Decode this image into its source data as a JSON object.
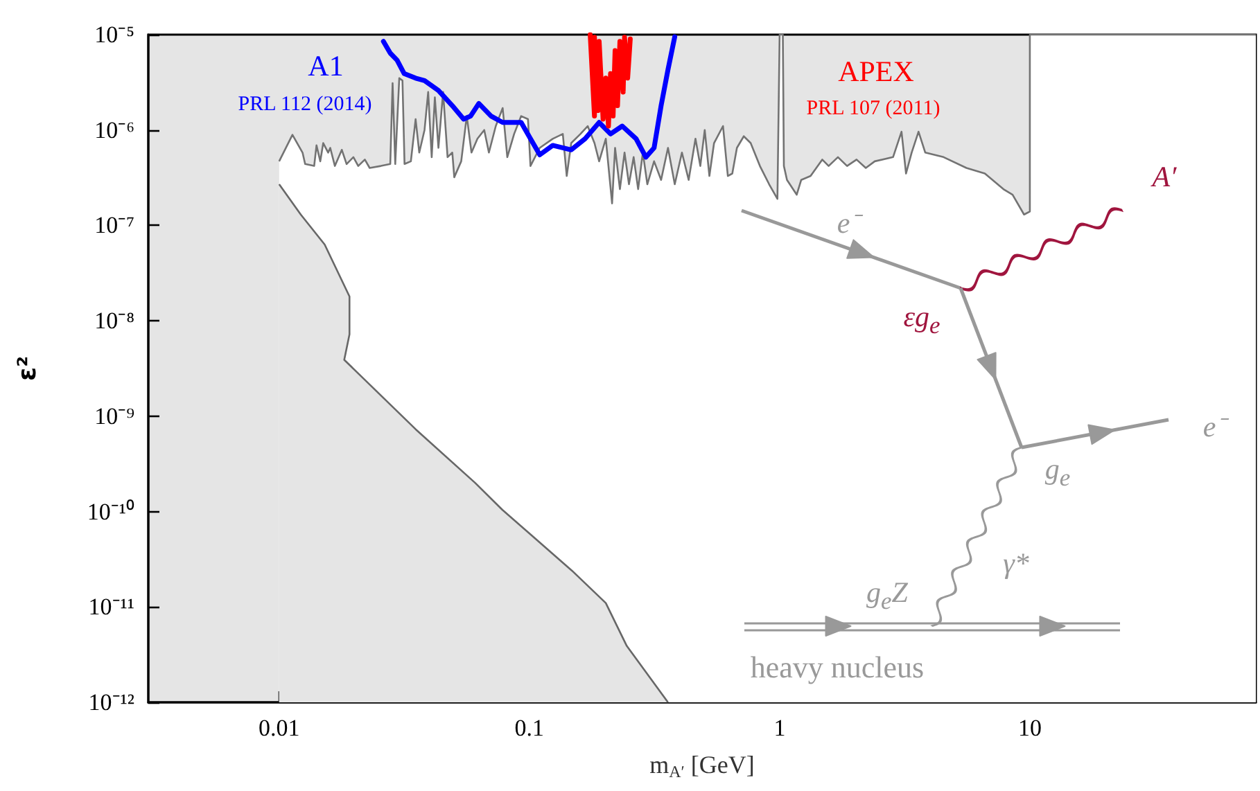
{
  "chart_data": {
    "type": "line",
    "xlabel": "m$_{A′}$ [GeV]",
    "ylabel": "ε²",
    "log": "xy",
    "grid": false,
    "legend": false,
    "marker": "none",
    "line_style": "solid",
    "xlim": [
      0.003,
      80
    ],
    "xticks": [
      0.01,
      0.1,
      1,
      10
    ],
    "ylim": [
      1e-12,
      1e-05
    ],
    "yticks": [
      {
        "value": 1e-12,
        "label": "10⁻¹²"
      },
      {
        "value": 1e-11,
        "label": "10⁻¹¹"
      },
      {
        "value": 1e-10,
        "label": "10⁻¹⁰"
      },
      {
        "value": 1e-09,
        "label": "10⁻⁹"
      },
      {
        "value": 1e-08,
        "label": "10⁻⁸"
      },
      {
        "value": 1e-07,
        "label": "10⁻⁷"
      },
      {
        "value": 1e-06,
        "label": "10⁻⁶"
      },
      {
        "value": 1e-05,
        "label": "10⁻⁵"
      }
    ],
    "annotations": [
      "PRL 112 (2014)",
      "PRL 107 (2011)",
      "e⁻",
      "A′",
      "εg$_{e}$",
      "e⁻",
      "g$_{e}$",
      "γ*",
      "g$_{e}$Z",
      "heavy nucleus"
    ],
    "series": [
      {
        "type": "area",
        "color": "#ffffff",
        "x": [
          0.01,
          0.0113,
          0.0124,
          0.0127,
          0.0138,
          0.0141,
          0.0146,
          0.015,
          0.0157,
          0.016,
          0.0167,
          0.0178,
          0.0186,
          0.0198,
          0.0207,
          0.022,
          0.023,
          0.0255,
          0.0278,
          0.0284,
          0.0291,
          0.0302,
          0.0311,
          0.0317,
          0.0336,
          0.0351,
          0.0363,
          0.0381,
          0.0394,
          0.0407,
          0.0419,
          0.0433,
          0.0452,
          0.0471,
          0.0492,
          0.0501,
          0.0534,
          0.0562,
          0.0587,
          0.062,
          0.066,
          0.0689,
          0.0734,
          0.0782,
          0.0816,
          0.0869,
          0.0927,
          0.0987,
          0.101,
          0.11,
          0.124,
          0.136,
          0.141,
          0.147,
          0.16,
          0.171,
          0.182,
          0.19,
          0.202,
          0.214,
          0.22,
          0.23,
          0.24,
          0.25,
          0.261,
          0.272,
          0.284,
          0.296,
          0.315,
          0.336,
          0.358,
          0.381,
          0.407,
          0.433,
          0.461,
          0.482,
          0.502,
          0.524,
          0.547,
          0.594,
          0.621,
          0.647,
          0.675,
          0.719,
          0.766,
          0.834,
          0.908,
          0.98,
          1.0,
          1.03,
          1.04,
          1.07,
          1.17,
          1.22,
          1.33,
          1.48,
          1.57,
          1.71,
          1.86,
          2.03,
          2.21,
          2.4,
          2.84,
          3.07,
          3.2,
          3.37,
          3.59,
          3.82,
          4.52,
          5.58,
          6.61,
          7.84,
          8.53,
          9.48,
          10.0,
          10.0,
          80
        ],
        "values": [
          4.7e-07,
          8.9e-07,
          5.8e-07,
          4.4e-07,
          4.2e-07,
          6.9e-07,
          4.7e-07,
          7.3e-07,
          5.8e-07,
          6.5e-07,
          4.2e-07,
          6.2e-07,
          4.4e-07,
          5.2e-07,
          4.2e-07,
          4.9e-07,
          4e-07,
          4.2e-07,
          4.4e-07,
          3.1e-06,
          4.4e-07,
          3.5e-06,
          3.3e-06,
          4.4e-07,
          4.7e-07,
          1.3e-06,
          5.8e-07,
          1e-06,
          2.5e-06,
          5.2e-07,
          2.2e-06,
          6.5e-07,
          2.5e-06,
          5.2e-07,
          5.8e-07,
          3.2e-07,
          4.7e-07,
          1.4e-06,
          5.8e-07,
          8.1e-07,
          1e-06,
          5.8e-07,
          1.1e-06,
          1.7e-06,
          5.2e-07,
          9.1e-07,
          1.4e-06,
          1.3e-06,
          4.2e-07,
          6.5e-07,
          8.1e-07,
          9.1e-07,
          3.3e-07,
          7.3e-07,
          9.1e-07,
          1.1e-06,
          7.3e-07,
          4.7e-07,
          8.1e-07,
          1.7e-07,
          6.5e-07,
          2.4e-07,
          5.8e-07,
          2.7e-07,
          5.2e-07,
          2.4e-07,
          5.8e-07,
          2.7e-07,
          4.7e-07,
          3e-07,
          6.5e-07,
          2.7e-07,
          5.8e-07,
          3e-07,
          8.1e-07,
          4.2e-07,
          1e-06,
          3.3e-07,
          7.3e-07,
          1.1e-06,
          3.3e-07,
          3.5e-07,
          6.5e-07,
          8.6e-07,
          7.3e-07,
          4.2e-07,
          2.7e-07,
          1.9e-07,
          1e-05,
          1e-05,
          4.2e-07,
          3e-07,
          2.1e-07,
          3e-07,
          3.3e-07,
          4.9e-07,
          4.2e-07,
          5.2e-07,
          4.2e-07,
          4.9e-07,
          4e-07,
          4.7e-07,
          5.2e-07,
          9.6e-07,
          3.5e-07,
          5.8e-07,
          9.6e-07,
          5.8e-07,
          5.2e-07,
          4e-07,
          3.5e-07,
          2.4e-07,
          2.1e-07,
          1.3e-07,
          1.4e-07,
          1e-05,
          1e-05
        ]
      },
      {
        "type": "area",
        "color": "#e5e5e5",
        "x": [
          0.01,
          0.0122,
          0.0152,
          0.0191,
          0.0191,
          0.0182,
          0.0351,
          0.0607,
          0.0781,
          0.148,
          0.202,
          0.245,
          0.358
        ],
        "values": [
          2.7e-07,
          1.3e-07,
          6.3e-08,
          1.8e-08,
          7.2e-09,
          3.9e-09,
          7.3e-10,
          2e-10,
          1.04e-10,
          2.4e-11,
          1.1e-11,
          3.9e-12,
          1e-12
        ]
      },
      {
        "name": "A1",
        "color": "#0000ff",
        "x": [
          0.0261,
          0.0278,
          0.0296,
          0.0316,
          0.0351,
          0.0381,
          0.0433,
          0.0492,
          0.0546,
          0.0582,
          0.0628,
          0.0703,
          0.0782,
          0.0927,
          0.101,
          0.11,
          0.124,
          0.147,
          0.167,
          0.19,
          0.211,
          0.235,
          0.267,
          0.292,
          0.315,
          0.336,
          0.358,
          0.381
        ],
        "values": [
          8.5e-06,
          6.4e-06,
          5.4e-06,
          3.9e-06,
          3.5e-06,
          3.3e-06,
          2.6e-06,
          1.8e-06,
          1.3e-06,
          1.4e-06,
          1.9e-06,
          1.4e-06,
          1.2e-06,
          1.2e-06,
          8.1e-07,
          5.5e-07,
          6.9e-07,
          6.2e-07,
          8.1e-07,
          1.2e-06,
          9.1e-07,
          1.1e-06,
          8.1e-07,
          5.2e-07,
          6.5e-07,
          1.8e-06,
          4.3e-06,
          9.5e-06
        ]
      },
      {
        "name": "APEX",
        "color": "#ff0000",
        "x": [
          0.175,
          0.182,
          0.182,
          0.188,
          0.19,
          0.197,
          0.202,
          0.207,
          0.211,
          0.216,
          0.22,
          0.225,
          0.23,
          0.237,
          0.24,
          0.247,
          0.253
        ],
        "values": [
          1e-05,
          1.4e-06,
          9.4e-06,
          1.6e-06,
          8.5e-06,
          1.3e-06,
          3.5e-06,
          1.1e-06,
          3.9e-06,
          1.4e-06,
          6.8e-06,
          1.8e-06,
          8.5e-06,
          2.5e-06,
          9.4e-06,
          3.5e-06,
          9e-06
        ]
      }
    ]
  }
}
